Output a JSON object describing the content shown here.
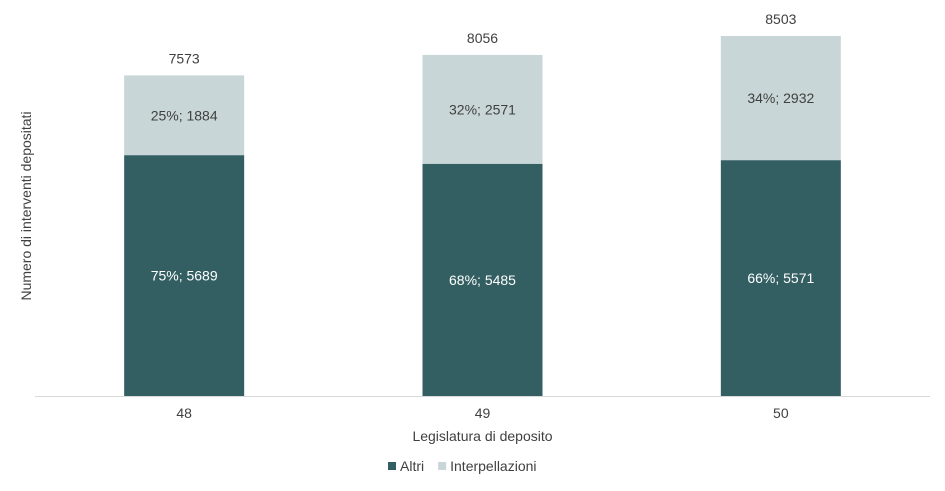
{
  "chart_data": {
    "type": "bar",
    "stacked": true,
    "title": "",
    "xlabel": "Legislatura di deposito",
    "ylabel": "Numero di interventi depositati",
    "categories": [
      "48",
      "49",
      "50"
    ],
    "series": [
      {
        "name": "Altri",
        "color": "#335f63",
        "values": [
          5689,
          5485,
          5571
        ],
        "labels": [
          "75%; 5689",
          "68%; 5485",
          "66%; 5571"
        ]
      },
      {
        "name": "Interpellazioni",
        "color": "#c9d6d7",
        "values": [
          1884,
          2571,
          2932
        ],
        "labels": [
          "25%; 1884",
          "32%; 2571",
          "34%; 2932"
        ]
      }
    ],
    "totals": [
      "7573",
      "8056",
      "8503"
    ],
    "ylim": [
      0,
      9000
    ],
    "grid": false,
    "legend_position": "bottom"
  }
}
